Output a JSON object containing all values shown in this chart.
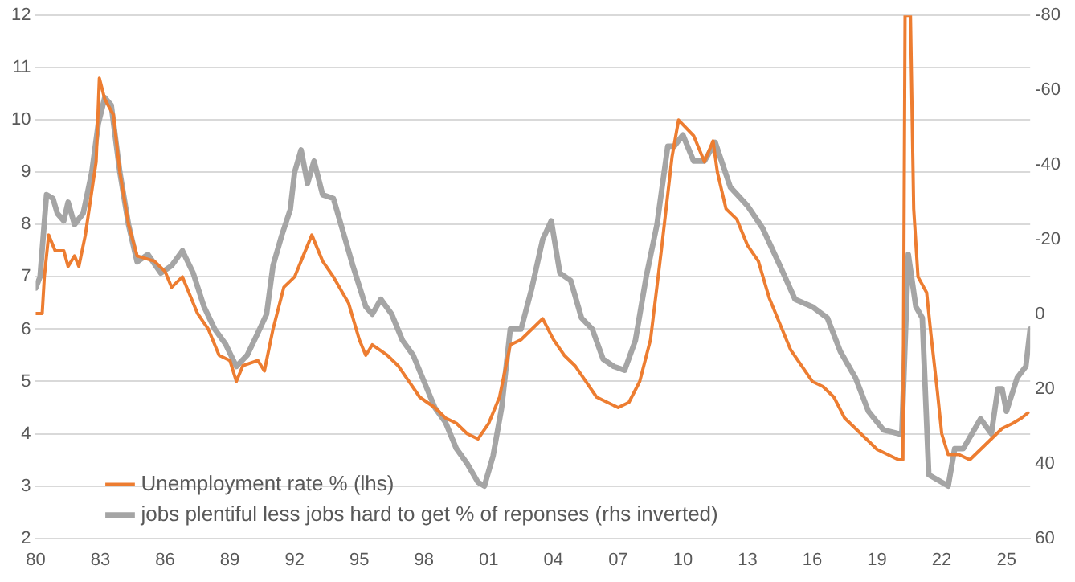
{
  "chart_data": {
    "type": "line",
    "legend": "bottom left",
    "grid": "y",
    "marker": "none",
    "line_style": "solid",
    "xlim": [
      1980,
      2026.1
    ],
    "xticks": [
      {
        "value": 1980,
        "label": "80"
      },
      {
        "value": 1983,
        "label": "83"
      },
      {
        "value": 1986,
        "label": "86"
      },
      {
        "value": 1989,
        "label": "89"
      },
      {
        "value": 1992,
        "label": "92"
      },
      {
        "value": 1995,
        "label": "95"
      },
      {
        "value": 1998,
        "label": "98"
      },
      {
        "value": 2001,
        "label": "01"
      },
      {
        "value": 2004,
        "label": "04"
      },
      {
        "value": 2007,
        "label": "07"
      },
      {
        "value": 2010,
        "label": "10"
      },
      {
        "value": 2013,
        "label": "13"
      },
      {
        "value": 2016,
        "label": "16"
      },
      {
        "value": 2019,
        "label": "19"
      },
      {
        "value": 2022,
        "label": "22"
      },
      {
        "value": 2025,
        "label": "25"
      }
    ],
    "ylim": [
      2,
      12
    ],
    "yticks": [
      2,
      3,
      4,
      5,
      6,
      7,
      8,
      9,
      10,
      11,
      12
    ],
    "y2lim": [
      60,
      -80
    ],
    "y2ticks": [
      60,
      40,
      20,
      0,
      -20,
      -40,
      -60,
      -80
    ],
    "series": [
      {
        "name": "Unemployment rate % (lhs)",
        "color": "#ed7d31",
        "x": [
          1980,
          1980.3,
          1980.4,
          1980.6,
          1980.9,
          1981.3,
          1981.5,
          1981.8,
          1982,
          1982.3,
          1982.8,
          1982.95,
          1983.2,
          1983.6,
          1983.9,
          1984.3,
          1984.7,
          1985.5,
          1986,
          1986.3,
          1986.8,
          1987.5,
          1988,
          1988.5,
          1989,
          1989.3,
          1989.6,
          1990.3,
          1990.6,
          1991,
          1991.5,
          1992,
          1992.4,
          1992.8,
          1993.3,
          1993.8,
          1994.5,
          1995,
          1995.3,
          1995.6,
          1996.3,
          1996.8,
          1997.3,
          1997.8,
          1998.5,
          1999,
          1999.5,
          2000,
          2000.5,
          2001,
          2001.5,
          2002,
          2002.5,
          2003.5,
          2004,
          2004.5,
          2005,
          2005.5,
          2006,
          2006.5,
          2007,
          2007.5,
          2008,
          2008.5,
          2009,
          2009.5,
          2009.8,
          2010.5,
          2011,
          2011.4,
          2011.6,
          2012,
          2012.5,
          2013,
          2013.5,
          2014,
          2014.5,
          2015,
          2015.5,
          2016,
          2016.5,
          2017,
          2017.5,
          2018,
          2018.5,
          2019,
          2019.5,
          2020,
          2020.2,
          2020.3,
          2020.55,
          2020.7,
          2020.9,
          2021.3,
          2021.5,
          2021.8,
          2022,
          2022.3,
          2022.8,
          2023.3,
          2023.8,
          2024.3,
          2024.8,
          2025.3,
          2025.7,
          2026
        ],
        "values": [
          6.3,
          6.3,
          7,
          7.8,
          7.5,
          7.5,
          7.2,
          7.4,
          7.2,
          7.8,
          9.2,
          10.8,
          10.4,
          10.1,
          9,
          8,
          7.4,
          7.3,
          7.1,
          6.8,
          7,
          6.3,
          6,
          5.5,
          5.4,
          5,
          5.3,
          5.4,
          5.2,
          6,
          6.8,
          7,
          7.4,
          7.8,
          7.3,
          7,
          6.5,
          5.8,
          5.5,
          5.7,
          5.5,
          5.3,
          5,
          4.7,
          4.5,
          4.3,
          4.2,
          4,
          3.9,
          4.2,
          4.7,
          5.7,
          5.8,
          6.2,
          5.8,
          5.5,
          5.3,
          5,
          4.7,
          4.6,
          4.5,
          4.6,
          5,
          5.8,
          7.5,
          9.3,
          10,
          9.7,
          9.2,
          9.6,
          9,
          8.3,
          8.1,
          7.6,
          7.3,
          6.6,
          6.1,
          5.6,
          5.3,
          5,
          4.9,
          4.7,
          4.3,
          4.1,
          3.9,
          3.7,
          3.6,
          3.5,
          3.5,
          12,
          12,
          8.3,
          7,
          6.7,
          5.9,
          4.8,
          4,
          3.6,
          3.6,
          3.5,
          3.7,
          3.9,
          4.1,
          4.2,
          4.3,
          4.4
        ]
      },
      {
        "name": "jobs plentiful less jobs hard to get % of reponses (rhs inverted)",
        "color": "#a5a5a5",
        "axis": "y2",
        "x": [
          1980,
          1980.2,
          1980.5,
          1980.8,
          1981,
          1981.3,
          1981.5,
          1981.8,
          1982.2,
          1982.6,
          1982.9,
          1983.2,
          1983.5,
          1983.9,
          1984.3,
          1984.7,
          1985.2,
          1985.8,
          1986.3,
          1986.8,
          1987.3,
          1987.8,
          1988.3,
          1988.8,
          1989.3,
          1989.8,
          1990.3,
          1990.7,
          1991,
          1991.4,
          1991.8,
          1992,
          1992.3,
          1992.6,
          1992.9,
          1993.3,
          1993.8,
          1994.3,
          1994.7,
          1995.3,
          1995.6,
          1996,
          1996.5,
          1997,
          1997.5,
          1998,
          1998.5,
          1999,
          1999.5,
          2000,
          2000.5,
          2000.8,
          2001.2,
          2001.6,
          2002,
          2002.5,
          2003,
          2003.5,
          2003.9,
          2004.3,
          2004.8,
          2005.3,
          2005.8,
          2006.3,
          2006.8,
          2007.3,
          2007.8,
          2008.3,
          2008.8,
          2009.3,
          2009.6,
          2010,
          2010.5,
          2011,
          2011.5,
          2012.2,
          2013,
          2013.7,
          2014.5,
          2015.2,
          2016,
          2016.7,
          2017.3,
          2018,
          2018.6,
          2019.3,
          2020,
          2020.15,
          2020.45,
          2020.8,
          2021.1,
          2021.4,
          2022,
          2022.3,
          2022.6,
          2023,
          2023.4,
          2023.8,
          2024.3,
          2024.6,
          2024.8,
          2025,
          2025.5,
          2025.9,
          2026.1
        ],
        "values": [
          -7,
          -10,
          -32,
          -31,
          -27,
          -25,
          -30,
          -24,
          -27,
          -38,
          -51,
          -58,
          -56,
          -38,
          -24,
          -14,
          -16,
          -11,
          -13,
          -17,
          -11,
          -2,
          4,
          8,
          14,
          11,
          5,
          0,
          -13,
          -21,
          -28,
          -38,
          -44,
          -35,
          -41,
          -32,
          -31,
          -21,
          -13,
          -2,
          0,
          -4,
          0,
          7,
          11,
          18,
          25,
          29,
          36,
          40,
          45,
          46,
          38,
          25,
          4,
          4,
          -7,
          -20,
          -25,
          -11,
          -9,
          1,
          4,
          12,
          14,
          15,
          7,
          -10,
          -24,
          -45,
          -45,
          -48,
          -41,
          -41,
          -46,
          -34,
          -29,
          -23,
          -13,
          -4,
          -2,
          1,
          10,
          17,
          26,
          31,
          32,
          32,
          -16,
          -2,
          1,
          43,
          45,
          46,
          36,
          36,
          32,
          28,
          32,
          20,
          20,
          26,
          17,
          14,
          4
        ]
      }
    ]
  }
}
